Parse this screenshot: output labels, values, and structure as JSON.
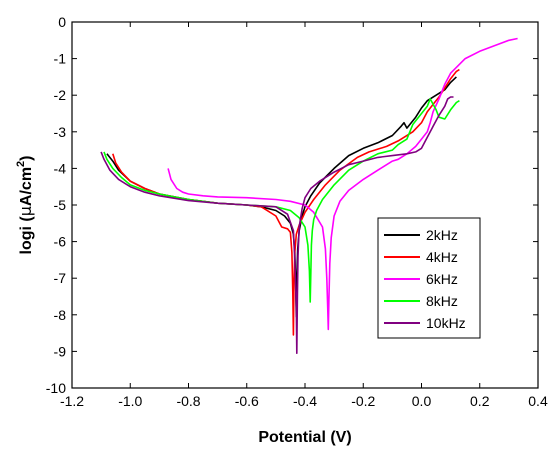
{
  "chart_data": {
    "type": "line",
    "xlabel": "Potential (V)",
    "ylabel_prefix": "logi (",
    "ylabel_mu": "μ",
    "ylabel_unit": "A/cm",
    "ylabel_sup": "2",
    "ylabel_suffix": ")",
    "xlim": [
      -1.2,
      0.4
    ],
    "ylim": [
      -10,
      0
    ],
    "xticks": [
      "-1.2",
      "-1.0",
      "-0.8",
      "-0.6",
      "-0.4",
      "-0.2",
      "0.0",
      "0.2",
      "0.4"
    ],
    "xtick_values": [
      -1.2,
      -1.0,
      -0.8,
      -0.6,
      -0.4,
      -0.2,
      0.0,
      0.2,
      0.4
    ],
    "yticks": [
      "0",
      "-1",
      "-2",
      "-3",
      "-4",
      "-5",
      "-6",
      "-7",
      "-8",
      "-9",
      "-10"
    ],
    "ytick_values": [
      0,
      -1,
      -2,
      -3,
      -4,
      -5,
      -6,
      -7,
      -8,
      -9,
      -10
    ],
    "grid": false,
    "legend_position": "inside-right",
    "series": [
      {
        "name": "2kHz",
        "color": "#000000",
        "x": [
          -1.08,
          -1.06,
          -1.04,
          -1.0,
          -0.95,
          -0.9,
          -0.8,
          -0.7,
          -0.6,
          -0.55,
          -0.5,
          -0.47,
          -0.45,
          -0.44,
          -0.435,
          -0.432,
          -0.43,
          -0.428,
          -0.425,
          -0.42,
          -0.41,
          -0.4,
          -0.38,
          -0.35,
          -0.3,
          -0.25,
          -0.2,
          -0.15,
          -0.1,
          -0.07,
          -0.06,
          -0.05,
          -0.02,
          0.0,
          0.02,
          0.05,
          0.08,
          0.1,
          0.12
        ],
        "y": [
          -3.6,
          -3.8,
          -4.05,
          -4.35,
          -4.55,
          -4.7,
          -4.85,
          -4.95,
          -5.0,
          -5.05,
          -5.15,
          -5.3,
          -5.5,
          -5.8,
          -6.3,
          -7.2,
          -8.05,
          -7.0,
          -6.2,
          -5.7,
          -5.3,
          -5.05,
          -4.75,
          -4.4,
          -4.0,
          -3.65,
          -3.45,
          -3.3,
          -3.1,
          -2.85,
          -2.75,
          -2.9,
          -2.6,
          -2.35,
          -2.15,
          -2.0,
          -1.85,
          -1.65,
          -1.5
        ]
      },
      {
        "name": "4kHz",
        "color": "#ff0000",
        "x": [
          -1.06,
          -1.05,
          -1.03,
          -1.0,
          -0.95,
          -0.9,
          -0.8,
          -0.7,
          -0.6,
          -0.55,
          -0.5,
          -0.48,
          -0.46,
          -0.45,
          -0.445,
          -0.442,
          -0.44,
          -0.438,
          -0.435,
          -0.43,
          -0.42,
          -0.4,
          -0.37,
          -0.33,
          -0.28,
          -0.22,
          -0.18,
          -0.12,
          -0.08,
          -0.03,
          0.0,
          0.02,
          0.04,
          0.06,
          0.08,
          0.1,
          0.12,
          0.13
        ],
        "y": [
          -3.6,
          -3.85,
          -4.1,
          -4.35,
          -4.55,
          -4.7,
          -4.85,
          -4.95,
          -5.0,
          -5.05,
          -5.3,
          -5.6,
          -5.65,
          -5.75,
          -6.3,
          -7.4,
          -8.55,
          -7.2,
          -6.3,
          -5.8,
          -5.55,
          -5.2,
          -4.85,
          -4.45,
          -4.05,
          -3.7,
          -3.55,
          -3.4,
          -3.25,
          -3.0,
          -2.75,
          -2.45,
          -2.25,
          -2.05,
          -1.8,
          -1.55,
          -1.35,
          -1.3
        ]
      },
      {
        "name": "6kHz",
        "color": "#ff00ff",
        "x": [
          -0.87,
          -0.86,
          -0.84,
          -0.82,
          -0.8,
          -0.75,
          -0.7,
          -0.6,
          -0.5,
          -0.45,
          -0.4,
          -0.37,
          -0.34,
          -0.33,
          -0.325,
          -0.322,
          -0.32,
          -0.318,
          -0.315,
          -0.31,
          -0.3,
          -0.28,
          -0.25,
          -0.2,
          -0.15,
          -0.1,
          -0.08,
          -0.05,
          -0.02,
          0.0,
          0.02,
          0.03,
          0.04,
          0.06,
          0.08,
          0.1,
          0.15,
          0.2,
          0.25,
          0.3,
          0.33
        ],
        "y": [
          -4.0,
          -4.3,
          -4.55,
          -4.65,
          -4.7,
          -4.75,
          -4.78,
          -4.8,
          -4.85,
          -4.9,
          -5.0,
          -5.2,
          -5.6,
          -6.2,
          -7.0,
          -7.8,
          -8.4,
          -7.6,
          -6.6,
          -5.9,
          -5.3,
          -4.9,
          -4.6,
          -4.3,
          -4.05,
          -3.8,
          -3.75,
          -3.6,
          -3.4,
          -3.2,
          -3.0,
          -2.75,
          -2.45,
          -2.1,
          -1.7,
          -1.4,
          -1.0,
          -0.8,
          -0.65,
          -0.5,
          -0.45
        ]
      },
      {
        "name": "8kHz",
        "color": "#00ff00",
        "x": [
          -1.09,
          -1.08,
          -1.06,
          -1.03,
          -1.0,
          -0.95,
          -0.9,
          -0.8,
          -0.7,
          -0.6,
          -0.5,
          -0.45,
          -0.42,
          -0.4,
          -0.39,
          -0.385,
          -0.382,
          -0.38,
          -0.378,
          -0.375,
          -0.37,
          -0.36,
          -0.34,
          -0.3,
          -0.25,
          -0.2,
          -0.15,
          -0.1,
          -0.08,
          -0.05,
          -0.03,
          0.0,
          0.02,
          0.03,
          0.05,
          0.06,
          0.08,
          0.1,
          0.12,
          0.13
        ],
        "y": [
          -3.55,
          -3.75,
          -4.0,
          -4.25,
          -4.45,
          -4.6,
          -4.7,
          -4.85,
          -4.95,
          -5.0,
          -5.05,
          -5.15,
          -5.35,
          -5.6,
          -6.1,
          -6.8,
          -7.65,
          -6.9,
          -6.1,
          -5.7,
          -5.4,
          -5.15,
          -4.85,
          -4.45,
          -4.05,
          -3.8,
          -3.6,
          -3.5,
          -3.35,
          -3.2,
          -2.8,
          -2.5,
          -2.3,
          -2.1,
          -2.4,
          -2.6,
          -2.65,
          -2.4,
          -2.2,
          -2.15
        ]
      },
      {
        "name": "10kHz",
        "color": "#800080",
        "x": [
          -1.1,
          -1.09,
          -1.07,
          -1.04,
          -1.0,
          -0.95,
          -0.9,
          -0.8,
          -0.7,
          -0.6,
          -0.5,
          -0.46,
          -0.44,
          -0.435,
          -0.43,
          -0.428,
          -0.426,
          -0.424,
          -0.42,
          -0.41,
          -0.4,
          -0.38,
          -0.35,
          -0.3,
          -0.25,
          -0.2,
          -0.15,
          -0.1,
          -0.05,
          -0.02,
          0.0,
          0.02,
          0.04,
          0.06,
          0.08,
          0.09,
          0.1,
          0.11
        ],
        "y": [
          -3.55,
          -3.75,
          -4.05,
          -4.3,
          -4.5,
          -4.65,
          -4.75,
          -4.88,
          -4.95,
          -5.0,
          -5.05,
          -5.25,
          -5.7,
          -6.5,
          -7.8,
          -9.05,
          -7.5,
          -6.4,
          -5.6,
          -5.1,
          -4.8,
          -4.55,
          -4.35,
          -4.1,
          -3.9,
          -3.8,
          -3.7,
          -3.65,
          -3.6,
          -3.55,
          -3.45,
          -3.15,
          -2.85,
          -2.55,
          -2.3,
          -2.1,
          -2.05,
          -2.05
        ]
      }
    ]
  }
}
